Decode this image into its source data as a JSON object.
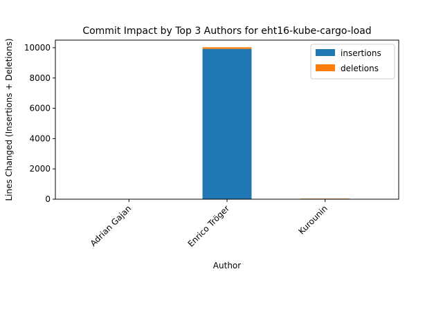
{
  "chart_data": {
    "type": "bar",
    "stacked": true,
    "title": "Commit Impact by Top 3 Authors for eht16-kube-cargo-load",
    "xlabel": "Author",
    "ylabel": "Lines Changed (Insertions + Deletions)",
    "categories": [
      "Adrian Gajan",
      "Enrico Tröger",
      "Kurounin"
    ],
    "series": [
      {
        "name": "insertions",
        "color": "#1f77b4",
        "values": [
          2,
          9920,
          30
        ]
      },
      {
        "name": "deletions",
        "color": "#ff7f0e",
        "values": [
          1,
          110,
          15
        ]
      }
    ],
    "ylim": [
      0,
      10500
    ],
    "yticks": [
      0,
      2000,
      4000,
      6000,
      8000,
      10000
    ],
    "legend_position": "top-right",
    "grid": false
  }
}
